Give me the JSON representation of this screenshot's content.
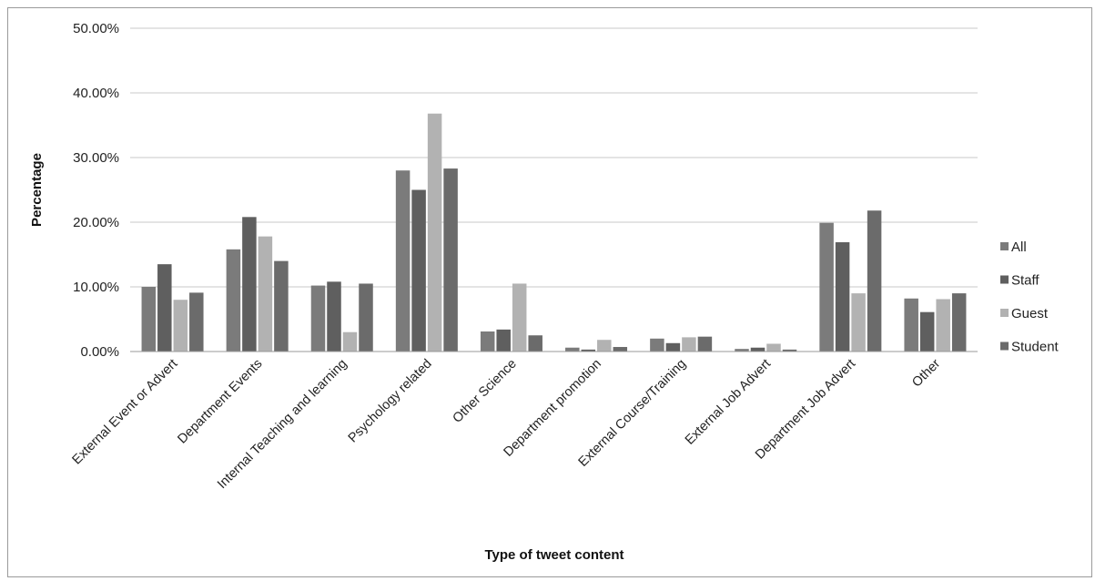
{
  "chart_data": {
    "type": "bar",
    "title": "",
    "xlabel": "Type of tweet content",
    "ylabel": "Percentage",
    "ylim": [
      0,
      50
    ],
    "yticks": [
      0,
      10,
      20,
      30,
      40,
      50
    ],
    "ytick_labels": [
      "0.00%",
      "10.00%",
      "20.00%",
      "30.00%",
      "40.00%",
      "50.00%"
    ],
    "grid": true,
    "legend_position": "right",
    "categories": [
      "External Event or Advert",
      "Department Events",
      "Internal Teaching and learning",
      "Psychology related",
      "Other Science",
      "Department promotion",
      "External Course/Training",
      "External Job Advert",
      "Department Job Advert",
      "Other"
    ],
    "series": [
      {
        "name": "All",
        "color": "#7b7b7b",
        "values": [
          10.0,
          15.8,
          10.2,
          28.0,
          3.1,
          0.6,
          2.0,
          0.4,
          19.9,
          8.2
        ]
      },
      {
        "name": "Staff",
        "color": "#5f5f5f",
        "values": [
          13.5,
          20.8,
          10.8,
          25.0,
          3.4,
          0.3,
          1.3,
          0.6,
          16.9,
          6.1
        ]
      },
      {
        "name": "Guest",
        "color": "#b2b2b2",
        "values": [
          8.0,
          17.8,
          3.0,
          36.8,
          10.5,
          1.8,
          2.2,
          1.2,
          9.0,
          8.1
        ]
      },
      {
        "name": "Student",
        "color": "#6b6b6b",
        "values": [
          9.1,
          14.0,
          10.5,
          28.3,
          2.5,
          0.7,
          2.3,
          0.3,
          21.8,
          9.0
        ]
      }
    ]
  }
}
